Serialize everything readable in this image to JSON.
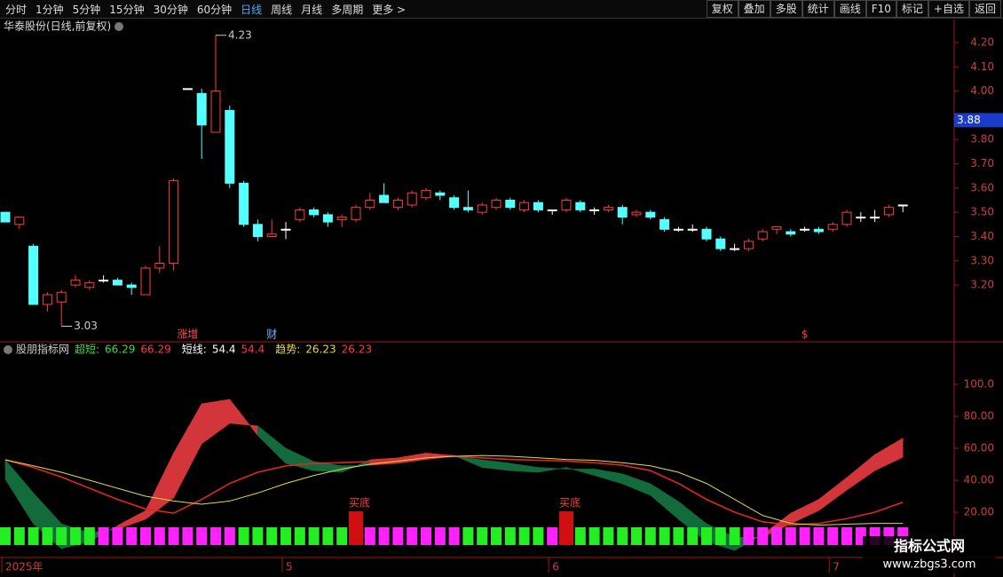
{
  "toolbar": {
    "left": [
      "分时",
      "1分钟",
      "5分钟",
      "15分钟",
      "30分钟",
      "60分钟",
      "日线",
      "周线",
      "月线",
      "多周期",
      "更多 >"
    ],
    "right": [
      "复权",
      "叠加",
      "多股",
      "统计",
      "画线",
      "F10",
      "标记",
      "+自选",
      "返回"
    ]
  },
  "chart_data": [
    {
      "type": "candlestick",
      "title": "华泰股份(日线,前复权)",
      "open": [
        3.5,
        3.45,
        3.36,
        3.12,
        3.13,
        3.2,
        3.19,
        3.22,
        3.22,
        3.2,
        3.16,
        3.27,
        3.29,
        4.01,
        3.99,
        3.83,
        3.92,
        3.62,
        3.45,
        3.4,
        3.43,
        3.47,
        3.51,
        3.49,
        3.47,
        3.47,
        3.52,
        3.57,
        3.52,
        3.53,
        3.56,
        3.58,
        3.56,
        3.52,
        3.5,
        3.52,
        3.55,
        3.51,
        3.54,
        3.51,
        3.51,
        3.54,
        3.51,
        3.51,
        3.52,
        3.49,
        3.5,
        3.47,
        3.43,
        3.43,
        3.43,
        3.39,
        3.35,
        3.35,
        3.39,
        3.43,
        3.42,
        3.43,
        3.43,
        3.43,
        3.45,
        3.48,
        3.48,
        3.49,
        3.53
      ],
      "high": [
        3.5,
        3.48,
        3.37,
        3.17,
        3.18,
        3.24,
        3.22,
        3.24,
        3.23,
        3.21,
        3.28,
        3.36,
        3.64,
        4.01,
        4.01,
        4.23,
        3.94,
        3.63,
        3.47,
        3.47,
        3.46,
        3.52,
        3.52,
        3.5,
        3.49,
        3.53,
        3.58,
        3.62,
        3.56,
        3.59,
        3.6,
        3.59,
        3.57,
        3.59,
        3.54,
        3.56,
        3.56,
        3.55,
        3.55,
        3.51,
        3.56,
        3.55,
        3.52,
        3.53,
        3.53,
        3.51,
        3.51,
        3.48,
        3.44,
        3.45,
        3.44,
        3.4,
        3.37,
        3.39,
        3.43,
        3.44,
        3.43,
        3.44,
        3.44,
        3.46,
        3.51,
        3.5,
        3.51,
        3.53,
        3.53
      ],
      "low": [
        3.46,
        3.43,
        3.12,
        3.09,
        3.03,
        3.19,
        3.18,
        3.21,
        3.2,
        3.16,
        3.16,
        3.25,
        3.26,
        4.01,
        3.72,
        3.83,
        3.6,
        3.44,
        3.38,
        3.4,
        3.39,
        3.46,
        3.48,
        3.44,
        3.44,
        3.46,
        3.51,
        3.54,
        3.51,
        3.52,
        3.55,
        3.55,
        3.51,
        3.5,
        3.49,
        3.51,
        3.51,
        3.5,
        3.5,
        3.49,
        3.5,
        3.5,
        3.49,
        3.5,
        3.45,
        3.48,
        3.47,
        3.42,
        3.42,
        3.42,
        3.38,
        3.34,
        3.34,
        3.34,
        3.38,
        3.41,
        3.4,
        3.42,
        3.41,
        3.42,
        3.44,
        3.46,
        3.46,
        3.48,
        3.5
      ],
      "close": [
        3.46,
        3.48,
        3.12,
        3.16,
        3.17,
        3.22,
        3.21,
        3.22,
        3.2,
        3.19,
        3.27,
        3.29,
        3.63,
        4.01,
        3.86,
        4.0,
        3.62,
        3.45,
        3.4,
        3.41,
        3.43,
        3.51,
        3.49,
        3.46,
        3.48,
        3.52,
        3.55,
        3.54,
        3.55,
        3.58,
        3.59,
        3.57,
        3.52,
        3.51,
        3.53,
        3.55,
        3.52,
        3.54,
        3.51,
        3.51,
        3.55,
        3.51,
        3.51,
        3.52,
        3.48,
        3.5,
        3.48,
        3.43,
        3.43,
        3.43,
        3.39,
        3.35,
        3.35,
        3.38,
        3.42,
        3.44,
        3.41,
        3.43,
        3.42,
        3.45,
        3.5,
        3.48,
        3.48,
        3.52,
        3.53
      ],
      "up_color": "#ff3b3b",
      "down_color": "#54ffff",
      "flat_color": "#ffffff",
      "ylim": [
        2.966,
        4.295
      ],
      "yticks": [
        {
          "value": 4.2,
          "label": "4.20"
        },
        {
          "value": 4.1,
          "label": "4.10"
        },
        {
          "value": 4.0,
          "label": "4.00"
        },
        {
          "value": 3.8,
          "label": "3.80"
        },
        {
          "value": 3.7,
          "label": "3.70"
        },
        {
          "value": 3.6,
          "label": "3.60"
        },
        {
          "value": 3.5,
          "label": "3.50"
        },
        {
          "value": 3.4,
          "label": "3.40"
        },
        {
          "value": 3.3,
          "label": "3.30"
        },
        {
          "value": 3.2,
          "label": "3.20"
        }
      ],
      "price_tag": 3.88,
      "extreme_labels": [
        {
          "index": 15,
          "value": 4.23
        },
        {
          "index": 4,
          "value": 3.03
        }
      ],
      "annotations": [
        {
          "index": 13,
          "text": "涨增",
          "color": "#ff5050"
        },
        {
          "index": 19,
          "text": "财",
          "color": "#7fb2ff"
        },
        {
          "index": 57,
          "text": "$",
          "color": "#ff3b3b"
        }
      ],
      "x_labels": [
        {
          "index": 0,
          "label": "2025年"
        },
        {
          "index": 20,
          "label": "5"
        },
        {
          "index": 39,
          "label": "6"
        },
        {
          "index": 59,
          "label": "7"
        }
      ]
    },
    {
      "type": "indicator",
      "title": "股朋指标网",
      "readouts": [
        {
          "label": "超短:",
          "value": 66.29,
          "value2": 66.29,
          "color": "#3fdc3f"
        },
        {
          "label": "短线:",
          "value": 54.4,
          "value2": 54.4,
          "color": "#ffffff"
        },
        {
          "label": "趋势:",
          "value": 26.23,
          "value2": 26.23,
          "color": "#e8dc3c"
        }
      ],
      "series": [
        {
          "color": "#d2353a",
          "values": [
            40.6,
            12.8,
            -2.8,
            1.7,
            11.7,
            21,
            57,
            87.8,
            90.6,
            68,
            50.6,
            46,
            45,
            52.8,
            54,
            57,
            55.5,
            48,
            46,
            45,
            48,
            43,
            37.8,
            30.6,
            15.6,
            1.7,
            -3.9,
            6,
            19.4,
            28,
            41.7,
            56,
            66.29
          ]
        },
        {
          "color": "#136b3c",
          "values": [
            52.8,
            32,
            12.8,
            7,
            9.4,
            15.6,
            29,
            62.8,
            75.6,
            74,
            60,
            51.7,
            49,
            49.4,
            50.6,
            53,
            55,
            52.8,
            50.6,
            48,
            47,
            47,
            44,
            37.8,
            26.7,
            12.8,
            4.4,
            4.4,
            12.8,
            21,
            33.9,
            46,
            54.4
          ]
        },
        {
          "color": "#e0261e",
          "values": [
            52.8,
            48,
            42,
            35,
            28,
            22,
            19.4,
            28,
            38,
            45,
            49,
            50.6,
            51,
            51.7,
            52.8,
            54,
            55,
            54,
            53,
            52.5,
            52,
            51,
            49.4,
            46,
            38,
            28,
            20,
            14,
            12,
            13,
            16,
            20,
            26.23
          ]
        },
        {
          "color": "#e5d94a",
          "values": [
            52.8,
            49,
            45,
            40,
            35,
            30,
            27,
            25,
            27,
            32,
            38,
            43,
            47,
            50,
            52,
            54,
            55,
            55.5,
            55,
            54,
            53,
            52.5,
            51,
            49,
            45,
            38,
            28,
            18,
            13,
            12,
            12.5,
            13,
            13
          ]
        }
      ],
      "ylim": [
        -8.3,
        119.4
      ],
      "yticks": [
        {
          "value": 100,
          "label": "100.0"
        },
        {
          "value": 80,
          "label": "80.00"
        },
        {
          "value": 60,
          "label": "60.00"
        },
        {
          "value": 40,
          "label": "40.00"
        },
        {
          "value": 20,
          "label": "20.00"
        }
      ],
      "signals": [
        {
          "index": 25,
          "text": "买底"
        },
        {
          "index": 40,
          "text": "买底"
        }
      ],
      "state_colors": [
        "#22ee22",
        "#ff22ff"
      ]
    }
  ],
  "watermark": {
    "title": "指标公式网",
    "url": "www.zbgs3.com"
  }
}
